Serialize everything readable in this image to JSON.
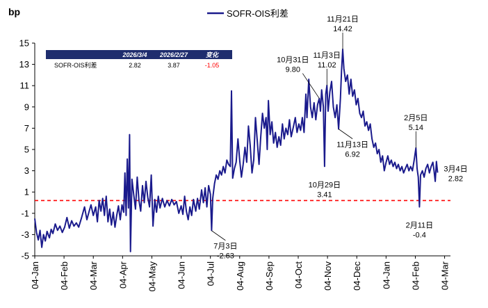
{
  "chart_data": {
    "type": "line",
    "title": "",
    "unit_label": "bp",
    "legend": "SOFR-OIS利差",
    "ylim": [
      -5,
      15
    ],
    "y_ticks": [
      "-5",
      "-3",
      "-1",
      "1",
      "3",
      "5",
      "7",
      "9",
      "11",
      "13",
      "15"
    ],
    "x_tick_labels": [
      "04-Jan",
      "04-Feb",
      "04-Mar",
      "04-Apr",
      "04-May",
      "04-Jun",
      "04-Jul",
      "04-Aug",
      "04-Sep",
      "04-Oct",
      "04-Nov",
      "04-Dec",
      "04-Jan",
      "04-Feb",
      "04-Mar"
    ],
    "x_range": [
      0,
      14.2
    ],
    "reference_line": 0.2,
    "colors": {
      "series": "#1a1a8c",
      "reference": "#ff0000",
      "header": "#1f2d6e"
    },
    "series": [
      {
        "name": "SOFR-OIS利差",
        "points": [
          [
            0.0,
            -1.5
          ],
          [
            0.06,
            -2.8
          ],
          [
            0.12,
            -3.5
          ],
          [
            0.18,
            -2.6
          ],
          [
            0.24,
            -4.2
          ],
          [
            0.3,
            -3.0
          ],
          [
            0.36,
            -3.6
          ],
          [
            0.42,
            -2.7
          ],
          [
            0.5,
            -3.3
          ],
          [
            0.56,
            -2.5
          ],
          [
            0.62,
            -2.9
          ],
          [
            0.7,
            -2.0
          ],
          [
            0.78,
            -2.6
          ],
          [
            0.86,
            -2.2
          ],
          [
            0.94,
            -2.8
          ],
          [
            1.02,
            -2.3
          ],
          [
            1.1,
            -1.4
          ],
          [
            1.18,
            -2.4
          ],
          [
            1.26,
            -1.7
          ],
          [
            1.34,
            -2.2
          ],
          [
            1.42,
            -1.9
          ],
          [
            1.5,
            -2.3
          ],
          [
            1.6,
            -1.4
          ],
          [
            1.7,
            -0.4
          ],
          [
            1.78,
            -1.6
          ],
          [
            1.86,
            -0.8
          ],
          [
            1.92,
            -0.2
          ],
          [
            2.0,
            -1.2
          ],
          [
            2.08,
            -0.4
          ],
          [
            2.14,
            -1.8
          ],
          [
            2.2,
            0.2
          ],
          [
            2.26,
            -0.8
          ],
          [
            2.32,
            0.4
          ],
          [
            2.38,
            -1.2
          ],
          [
            2.44,
            0.6
          ],
          [
            2.5,
            -1.8
          ],
          [
            2.56,
            -0.6
          ],
          [
            2.62,
            -2.1
          ],
          [
            2.68,
            -0.9
          ],
          [
            2.74,
            -2.3
          ],
          [
            2.8,
            -1.2
          ],
          [
            2.86,
            -0.3
          ],
          [
            2.92,
            -1.6
          ],
          [
            2.98,
            -0.2
          ],
          [
            3.04,
            -0.9
          ],
          [
            3.08,
            2.8
          ],
          [
            3.12,
            -1.2
          ],
          [
            3.16,
            4.1
          ],
          [
            3.2,
            -0.5
          ],
          [
            3.24,
            6.4
          ],
          [
            3.27,
            -4.6
          ],
          [
            3.32,
            2.2
          ],
          [
            3.38,
            0.8
          ],
          [
            3.44,
            -0.6
          ],
          [
            3.5,
            2.4
          ],
          [
            3.56,
            0.2
          ],
          [
            3.62,
            -0.8
          ],
          [
            3.68,
            1.6
          ],
          [
            3.74,
            0.0
          ],
          [
            3.8,
            2.0
          ],
          [
            3.86,
            0.5
          ],
          [
            3.92,
            -0.4
          ],
          [
            3.98,
            2.6
          ],
          [
            4.04,
            -2.2
          ],
          [
            4.1,
            0.3
          ],
          [
            4.16,
            -0.9
          ],
          [
            4.22,
            0.6
          ],
          [
            4.28,
            -0.5
          ],
          [
            4.36,
            0.4
          ],
          [
            4.44,
            -0.4
          ],
          [
            4.52,
            0.2
          ],
          [
            4.6,
            -0.3
          ],
          [
            4.68,
            0.3
          ],
          [
            4.76,
            -0.2
          ],
          [
            4.84,
            0.1
          ],
          [
            4.92,
            -1.0
          ],
          [
            5.0,
            -0.3
          ],
          [
            5.06,
            -1.1
          ],
          [
            5.12,
            0.6
          ],
          [
            5.18,
            -0.8
          ],
          [
            5.24,
            -1.6
          ],
          [
            5.3,
            -0.4
          ],
          [
            5.36,
            -1.2
          ],
          [
            5.42,
            0.3
          ],
          [
            5.5,
            -0.8
          ],
          [
            5.56,
            0.4
          ],
          [
            5.62,
            -0.6
          ],
          [
            5.7,
            1.2
          ],
          [
            5.76,
            0.0
          ],
          [
            5.82,
            1.4
          ],
          [
            5.88,
            -0.4
          ],
          [
            5.94,
            1.6
          ],
          [
            6.0,
            0.8
          ],
          [
            6.04,
            -2.6
          ],
          [
            6.08,
            0.4
          ],
          [
            6.14,
            1.8
          ],
          [
            6.2,
            2.6
          ],
          [
            6.26,
            2.2
          ],
          [
            6.32,
            3.0
          ],
          [
            6.38,
            2.6
          ],
          [
            6.44,
            3.4
          ],
          [
            6.5,
            2.8
          ],
          [
            6.56,
            4.0
          ],
          [
            6.62,
            3.6
          ],
          [
            6.68,
            3.4
          ],
          [
            6.72,
            10.5
          ],
          [
            6.76,
            2.3
          ],
          [
            6.82,
            3.2
          ],
          [
            6.88,
            3.8
          ],
          [
            6.94,
            6.0
          ],
          [
            7.0,
            4.0
          ],
          [
            7.06,
            2.4
          ],
          [
            7.12,
            3.6
          ],
          [
            7.18,
            5.2
          ],
          [
            7.24,
            3.8
          ],
          [
            7.3,
            7.2
          ],
          [
            7.36,
            5.4
          ],
          [
            7.42,
            2.8
          ],
          [
            7.48,
            4.0
          ],
          [
            7.54,
            8.0
          ],
          [
            7.6,
            5.8
          ],
          [
            7.66,
            3.6
          ],
          [
            7.72,
            6.2
          ],
          [
            7.78,
            8.4
          ],
          [
            7.84,
            7.0
          ],
          [
            7.9,
            8.0
          ],
          [
            7.94,
            5.0
          ],
          [
            7.98,
            9.6
          ],
          [
            8.04,
            6.4
          ],
          [
            8.1,
            7.6
          ],
          [
            8.16,
            5.6
          ],
          [
            8.22,
            6.6
          ],
          [
            8.28,
            5.2
          ],
          [
            8.34,
            6.2
          ],
          [
            8.4,
            5.4
          ],
          [
            8.46,
            7.4
          ],
          [
            8.52,
            6.0
          ],
          [
            8.58,
            7.0
          ],
          [
            8.64,
            6.4
          ],
          [
            8.7,
            7.8
          ],
          [
            8.76,
            6.2
          ],
          [
            8.84,
            7.2
          ],
          [
            8.9,
            8.0
          ],
          [
            8.96,
            6.6
          ],
          [
            9.02,
            7.4
          ],
          [
            9.08,
            6.8
          ],
          [
            9.14,
            8.0
          ],
          [
            9.2,
            6.6
          ],
          [
            9.26,
            10.2
          ],
          [
            9.3,
            8.0
          ],
          [
            9.36,
            11.6
          ],
          [
            9.42,
            9.0
          ],
          [
            9.48,
            8.0
          ],
          [
            9.54,
            9.4
          ],
          [
            9.6,
            7.8
          ],
          [
            9.66,
            9.2
          ],
          [
            9.72,
            9.8
          ],
          [
            9.76,
            8.6
          ],
          [
            9.8,
            10.6
          ],
          [
            9.86,
            9.0
          ],
          [
            9.9,
            3.41
          ],
          [
            9.94,
            10.2
          ],
          [
            9.98,
            11.02
          ],
          [
            10.02,
            8.6
          ],
          [
            10.08,
            10.4
          ],
          [
            10.14,
            11.4
          ],
          [
            10.2,
            9.0
          ],
          [
            10.26,
            8.0
          ],
          [
            10.32,
            9.2
          ],
          [
            10.38,
            6.92
          ],
          [
            10.44,
            9.8
          ],
          [
            10.48,
            12.4
          ],
          [
            10.52,
            14.42
          ],
          [
            10.56,
            12.6
          ],
          [
            10.62,
            11.4
          ],
          [
            10.68,
            12.0
          ],
          [
            10.74,
            10.2
          ],
          [
            10.8,
            11.6
          ],
          [
            10.86,
            10.0
          ],
          [
            10.92,
            10.6
          ],
          [
            10.98,
            9.2
          ],
          [
            11.04,
            9.8
          ],
          [
            11.1,
            8.4
          ],
          [
            11.16,
            8.0
          ],
          [
            11.22,
            8.6
          ],
          [
            11.28,
            7.2
          ],
          [
            11.34,
            7.6
          ],
          [
            11.4,
            6.8
          ],
          [
            11.46,
            7.4
          ],
          [
            11.52,
            6.0
          ],
          [
            11.58,
            5.2
          ],
          [
            11.64,
            5.6
          ],
          [
            11.7,
            4.6
          ],
          [
            11.76,
            5.0
          ],
          [
            11.82,
            3.8
          ],
          [
            11.88,
            4.4
          ],
          [
            11.94,
            3.0
          ],
          [
            12.0,
            3.8
          ],
          [
            12.06,
            4.4
          ],
          [
            12.12,
            3.6
          ],
          [
            12.18,
            4.0
          ],
          [
            12.24,
            3.4
          ],
          [
            12.3,
            3.8
          ],
          [
            12.36,
            3.2
          ],
          [
            12.42,
            3.6
          ],
          [
            12.48,
            3.0
          ],
          [
            12.54,
            3.4
          ],
          [
            12.6,
            2.8
          ],
          [
            12.66,
            3.2
          ],
          [
            12.72,
            3.6
          ],
          [
            12.78,
            3.0
          ],
          [
            12.84,
            3.4
          ],
          [
            12.9,
            3.0
          ],
          [
            12.96,
            4.0
          ],
          [
            13.02,
            5.14
          ],
          [
            13.06,
            3.2
          ],
          [
            13.1,
            2.4
          ],
          [
            13.14,
            -0.4
          ],
          [
            13.18,
            2.6
          ],
          [
            13.24,
            3.0
          ],
          [
            13.3,
            2.4
          ],
          [
            13.36,
            3.2
          ],
          [
            13.42,
            3.6
          ],
          [
            13.48,
            2.8
          ],
          [
            13.54,
            3.4
          ],
          [
            13.6,
            3.8
          ],
          [
            13.64,
            3.0
          ],
          [
            13.68,
            2.0
          ],
          [
            13.72,
            3.87
          ],
          [
            13.76,
            2.82
          ]
        ]
      }
    ],
    "annotations": [
      {
        "lines": [
          "7月3日",
          "-2.63"
        ],
        "x": 6.04,
        "y": -2.63,
        "anchor": "below-right"
      },
      {
        "lines": [
          "10月29日",
          "3.41"
        ],
        "x": 9.9,
        "y": 3.41,
        "anchor": "below"
      },
      {
        "lines": [
          "10月31日",
          "9.80"
        ],
        "x": 9.72,
        "y": 9.8,
        "anchor": "above-left"
      },
      {
        "lines": [
          "11月3日",
          "11.02"
        ],
        "x": 9.98,
        "y": 11.02,
        "anchor": "above"
      },
      {
        "lines": [
          "11月13日",
          "6.92"
        ],
        "x": 10.38,
        "y": 6.92,
        "anchor": "below-right"
      },
      {
        "lines": [
          "11月21日",
          "14.42"
        ],
        "x": 10.52,
        "y": 14.42,
        "anchor": "above"
      },
      {
        "lines": [
          "2月5日",
          "5.14"
        ],
        "x": 13.02,
        "y": 5.14,
        "anchor": "above"
      },
      {
        "lines": [
          "2月11日",
          "-0.4"
        ],
        "x": 13.14,
        "y": -0.4,
        "anchor": "below"
      },
      {
        "lines": [
          "3月4日",
          "2.82"
        ],
        "x": 13.76,
        "y": 2.82,
        "anchor": "right"
      }
    ]
  },
  "summary_table": {
    "headers": [
      "",
      "2026/3/4",
      "2026/2/27",
      "变化"
    ],
    "row": [
      "SOFR-OIS利差",
      "2.82",
      "3.87",
      "-1.05"
    ]
  }
}
